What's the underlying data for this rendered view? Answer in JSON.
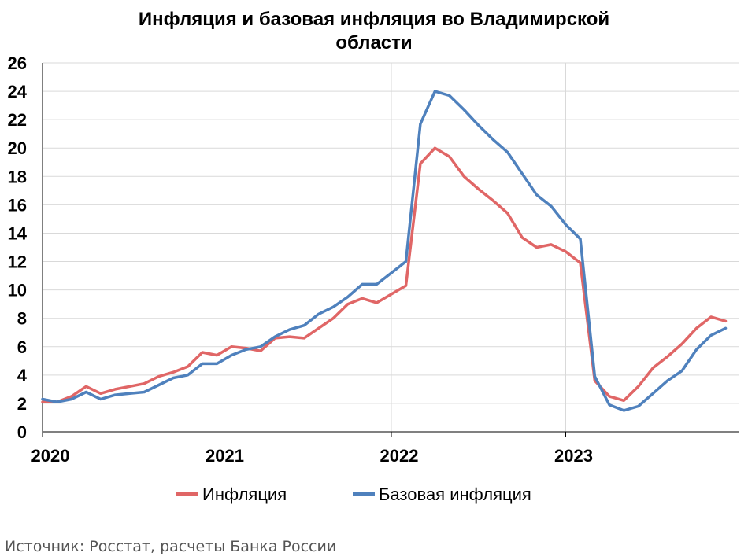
{
  "chart_data": {
    "type": "line",
    "title_lines": [
      "Инфляция и базовая инфляция во Владимирской",
      "области"
    ],
    "xlabel": "",
    "ylabel": "",
    "x_tick_labels": [
      "2020",
      "2021",
      "2022",
      "2023"
    ],
    "ylim": [
      0,
      26
    ],
    "y_ticks": [
      0,
      2,
      4,
      6,
      8,
      10,
      12,
      14,
      16,
      18,
      20,
      22,
      24,
      26
    ],
    "grid": true,
    "legend_position": "bottom",
    "months": [
      "2020-01",
      "2020-02",
      "2020-03",
      "2020-04",
      "2020-05",
      "2020-06",
      "2020-07",
      "2020-08",
      "2020-09",
      "2020-10",
      "2020-11",
      "2020-12",
      "2021-01",
      "2021-02",
      "2021-03",
      "2021-04",
      "2021-05",
      "2021-06",
      "2021-07",
      "2021-08",
      "2021-09",
      "2021-10",
      "2021-11",
      "2021-12",
      "2022-01",
      "2022-02",
      "2022-03",
      "2022-04",
      "2022-05",
      "2022-06",
      "2022-07",
      "2022-08",
      "2022-09",
      "2022-10",
      "2022-11",
      "2022-12",
      "2023-01",
      "2023-02",
      "2023-03",
      "2023-04",
      "2023-05",
      "2023-06",
      "2023-07",
      "2023-08",
      "2023-09",
      "2023-10",
      "2023-11",
      "2023-12"
    ],
    "series": [
      {
        "name": "Инфляция",
        "color": "#e06666",
        "values": [
          2.1,
          2.1,
          2.5,
          3.2,
          2.7,
          3.0,
          3.2,
          3.4,
          3.9,
          4.2,
          4.6,
          5.6,
          5.4,
          6.0,
          5.9,
          5.7,
          6.6,
          6.7,
          6.6,
          7.3,
          8.0,
          9.0,
          9.4,
          9.1,
          9.7,
          10.3,
          18.9,
          20.0,
          19.4,
          18.0,
          17.1,
          16.3,
          15.4,
          13.7,
          13.0,
          13.2,
          12.7,
          11.9,
          3.6,
          2.5,
          2.2,
          3.2,
          4.5,
          5.3,
          6.2,
          7.3,
          8.1,
          7.8
        ]
      },
      {
        "name": "Базовая инфляция",
        "color": "#4f81bd",
        "values": [
          2.3,
          2.1,
          2.3,
          2.8,
          2.3,
          2.6,
          2.7,
          2.8,
          3.3,
          3.8,
          4.0,
          4.8,
          4.8,
          5.4,
          5.8,
          6.0,
          6.7,
          7.2,
          7.5,
          8.3,
          8.8,
          9.5,
          10.4,
          10.4,
          11.2,
          12.0,
          21.7,
          24.0,
          23.7,
          22.7,
          21.6,
          20.6,
          19.7,
          18.2,
          16.7,
          15.9,
          14.6,
          13.6,
          3.9,
          1.9,
          1.5,
          1.8,
          2.7,
          3.6,
          4.3,
          5.8,
          6.8,
          7.3
        ]
      }
    ]
  },
  "source_note": "Источник: Росстат, расчеты Банка России"
}
